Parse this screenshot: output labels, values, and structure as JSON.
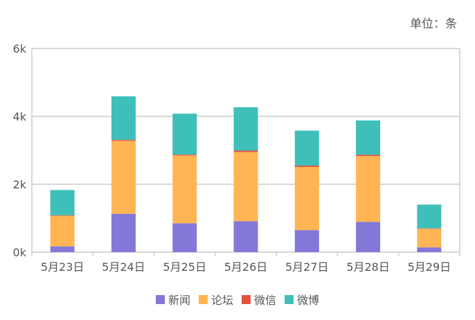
{
  "unit_label": "单位：条",
  "colors": {
    "news": "#8378d8",
    "forum": "#ffb554",
    "wechat": "#e0543f",
    "weibo": "#3fbfba",
    "axis": "#cccccc",
    "text": "#555555"
  },
  "chart_data": {
    "type": "bar",
    "stacked": true,
    "title": "",
    "xlabel": "",
    "ylabel": "",
    "categories": [
      "5月23日",
      "5月24日",
      "5月25日",
      "5月26日",
      "5月27日",
      "5月28日",
      "5月29日"
    ],
    "ylim": [
      0,
      6000
    ],
    "yticks": [
      0,
      2000,
      4000,
      6000
    ],
    "ytick_labels": [
      "0k",
      "2k",
      "4k",
      "6k"
    ],
    "grid": true,
    "legend_position": "bottom",
    "series": [
      {
        "name": "新闻",
        "color_key": "news",
        "values": [
          170,
          1130,
          850,
          910,
          650,
          890,
          140
        ]
      },
      {
        "name": "论坛",
        "color_key": "forum",
        "values": [
          900,
          2150,
          2000,
          2040,
          1860,
          1940,
          550
        ]
      },
      {
        "name": "微信",
        "color_key": "wechat",
        "values": [
          15,
          30,
          25,
          40,
          40,
          40,
          10
        ]
      },
      {
        "name": "微博",
        "color_key": "weibo",
        "values": [
          745,
          1280,
          1205,
          1280,
          1030,
          1010,
          700
        ]
      }
    ]
  }
}
